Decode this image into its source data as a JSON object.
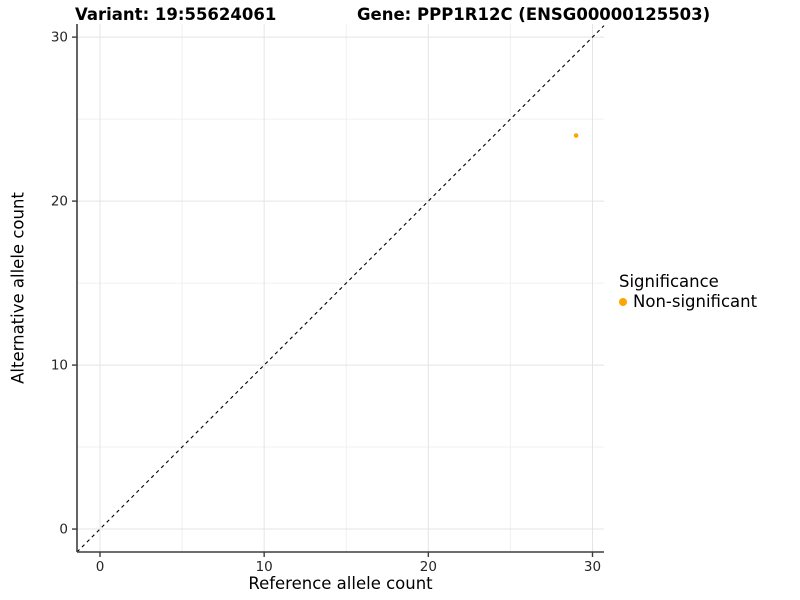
{
  "chart_data": {
    "type": "scatter",
    "title_left": "Variant: 19:55624061",
    "title_right": "Gene: PPP1R12C (ENSG00000125503)",
    "xlabel": "Reference allele count",
    "ylabel": "Alternative allele count",
    "xlim": [
      -1.4,
      30.7
    ],
    "ylim": [
      -1.4,
      30.8
    ],
    "x_ticks": [
      "0",
      "10",
      "20",
      "30"
    ],
    "y_ticks": [
      "0",
      "10",
      "20",
      "30"
    ],
    "x_minor": [
      5,
      15,
      25
    ],
    "y_minor": [
      5,
      15,
      25
    ],
    "grid": "major+minor",
    "points": [
      {
        "x": 29,
        "y": 24,
        "series": "Non-significant"
      }
    ],
    "identity_line": {
      "slope": 1,
      "intercept": 0,
      "style": "dashed"
    },
    "series": [
      {
        "name": "Non-significant",
        "color": "#FFA500"
      }
    ],
    "legend": {
      "title": "Significance",
      "position": "right",
      "entries": [
        {
          "label": "Non-significant",
          "color": "#FFA500"
        }
      ]
    }
  },
  "colors": {
    "background": "#FFFFFF",
    "grid_major": "#E4E4E4",
    "grid_minor": "#F0F0F0",
    "axis_line": "#3D3D3D",
    "tick_mark": "#3D3D3D",
    "tick_text": "#262626",
    "identity_line": "#000000"
  }
}
